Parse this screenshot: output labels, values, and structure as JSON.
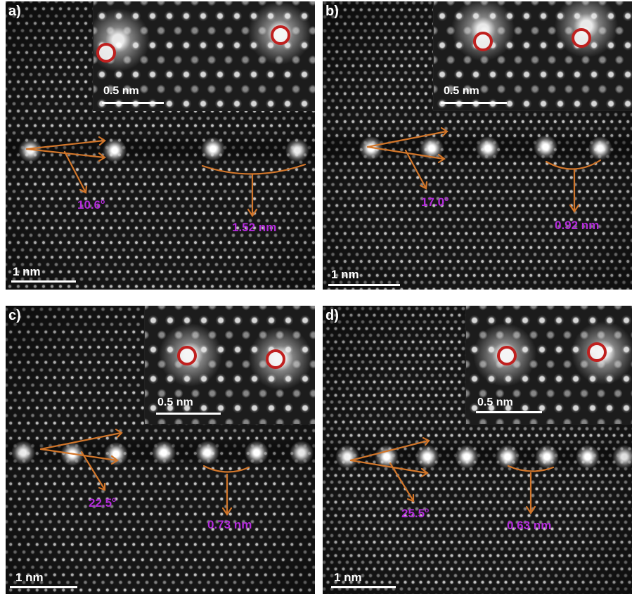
{
  "panels": [
    {
      "label": "a)",
      "angle": "10.6",
      "angle_unit": "o",
      "spacing": "1.52 nm",
      "scale_main": "1 nm",
      "scale_inset": "0.5 nm"
    },
    {
      "label": "b)",
      "angle": "17.0",
      "angle_unit": "o",
      "spacing": "0.92 nm",
      "scale_main": "1 nm",
      "scale_inset": "0.5 nm"
    },
    {
      "label": "c)",
      "angle": "22.5",
      "angle_unit": "o",
      "spacing": "0.73 nm",
      "scale_main": "1 nm",
      "scale_inset": "0.5 nm"
    },
    {
      "label": "d)",
      "angle": "25.5",
      "angle_unit": "o",
      "spacing": "0.63 nm",
      "scale_main": "1 nm",
      "scale_inset": "0.5 nm"
    }
  ],
  "colors": {
    "annotation_text": "#b42bdc",
    "arrow": "#d2762a",
    "marker_ring": "#c0201f",
    "scale": "#ffffff",
    "background": "#161616"
  }
}
